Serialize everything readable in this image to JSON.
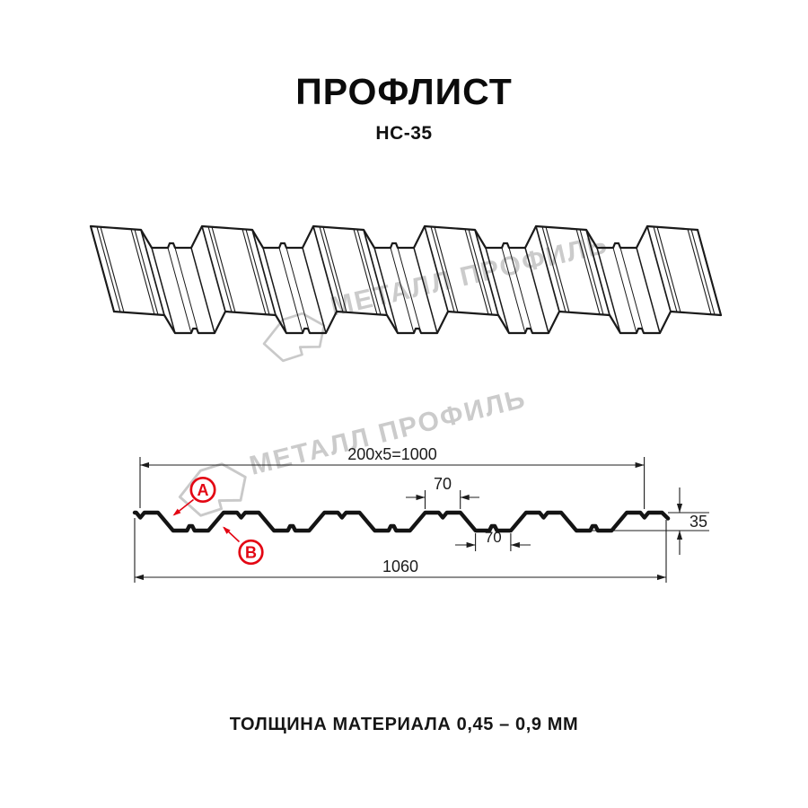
{
  "header": {
    "title": "ПРОФЛИСТ",
    "subtitle": "НС-35"
  },
  "watermark": {
    "brand": "МЕТАЛЛ ПРОФИЛЬ"
  },
  "cross_section": {
    "dimensions": {
      "period_total": "200x5=1000",
      "crest_width": "70",
      "trough_width": "70",
      "profile_height": "35",
      "sheet_width": "1060"
    },
    "point_labels": {
      "a": "A",
      "b": "B"
    }
  },
  "footer": {
    "note": "ТОЛЩИНА МАТЕРИАЛА 0,45 – 0,9 ММ"
  },
  "colors": {
    "line": "#1a1a1a",
    "dim_line": "#1c1c1c",
    "accent_red": "#e30613",
    "watermark": "#cbcbcb"
  }
}
